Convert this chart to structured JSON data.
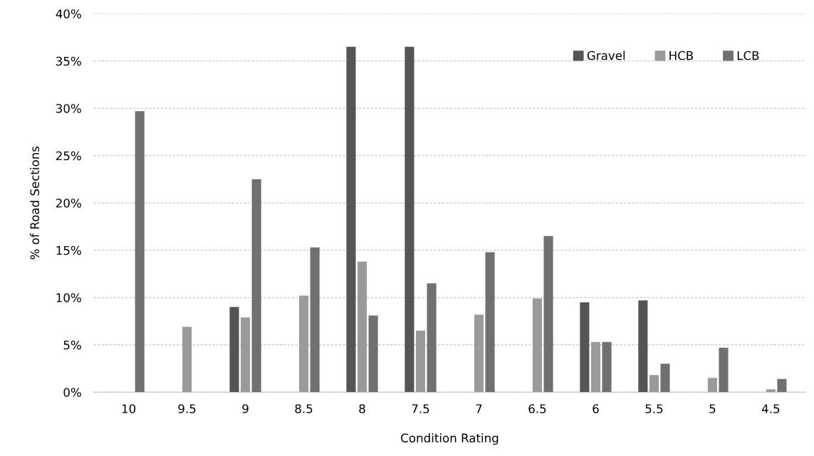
{
  "chart_data": {
    "type": "bar",
    "xlabel": "Condition Rating",
    "ylabel": "% of Road Sections",
    "categories": [
      "10",
      "9.5",
      "9",
      "8.5",
      "8",
      "7.5",
      "7",
      "6.5",
      "6",
      "5.5",
      "5",
      "4.5"
    ],
    "series": [
      {
        "name": "Gravel",
        "color": "#555555",
        "values": [
          null,
          null,
          9.0,
          null,
          36.5,
          36.5,
          null,
          null,
          9.5,
          9.7,
          null,
          null
        ]
      },
      {
        "name": "HCB",
        "color": "#9a9a9a",
        "values": [
          null,
          6.9,
          7.9,
          10.2,
          13.8,
          6.5,
          8.2,
          9.9,
          5.3,
          1.8,
          1.5,
          0.3
        ]
      },
      {
        "name": "LCB",
        "color": "#707070",
        "values": [
          29.7,
          null,
          22.5,
          15.3,
          8.1,
          11.5,
          14.8,
          16.5,
          5.3,
          3.0,
          4.7,
          1.4
        ]
      }
    ],
    "ylim": [
      0,
      40
    ],
    "yticks": [
      {
        "value": 0,
        "label": "0%"
      },
      {
        "value": 5,
        "label": "5%"
      },
      {
        "value": 10,
        "label": "10%"
      },
      {
        "value": 15,
        "label": "15%"
      },
      {
        "value": 20,
        "label": "20%"
      },
      {
        "value": 25,
        "label": "25%"
      },
      {
        "value": 30,
        "label": "30%"
      },
      {
        "value": 35,
        "label": "35%"
      },
      {
        "value": 40,
        "label": "40%"
      }
    ],
    "grid": "y",
    "legend": "top right"
  }
}
